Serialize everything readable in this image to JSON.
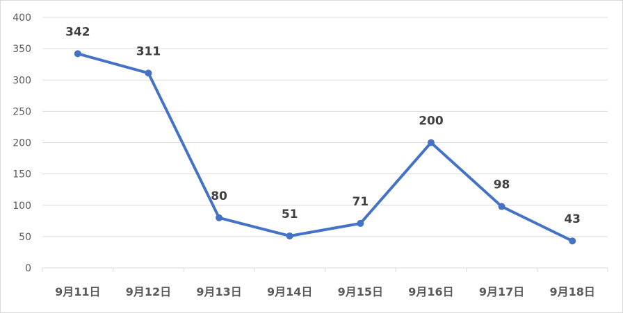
{
  "chart_data": {
    "type": "line",
    "categories": [
      "9月11日",
      "9月12日",
      "9月13日",
      "9月14日",
      "9月15日",
      "9月16日",
      "9月17日",
      "9月18日"
    ],
    "values": [
      342,
      311,
      80,
      51,
      71,
      200,
      98,
      43
    ],
    "ylim": [
      0,
      400
    ],
    "yticks": [
      0,
      50,
      100,
      150,
      200,
      250,
      300,
      350,
      400
    ],
    "grid": true,
    "data_labels": true,
    "markers": true,
    "color": "#4472C4",
    "title": "",
    "xlabel": "",
    "ylabel": ""
  }
}
